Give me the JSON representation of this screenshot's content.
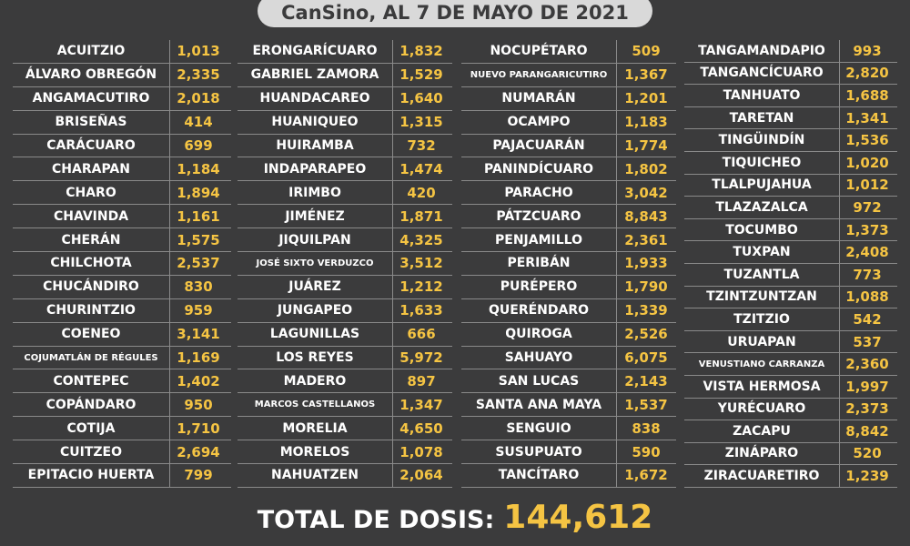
{
  "header": {
    "title": "CanSino, AL 7 DE MAYO DE 2021"
  },
  "columns": [
    [
      {
        "name": "ACUITZIO",
        "value": "1,013"
      },
      {
        "name": "ÁLVARO OBREGÓN",
        "value": "2,335"
      },
      {
        "name": "ANGAMACUTIRO",
        "value": "2,018"
      },
      {
        "name": "BRISEÑAS",
        "value": "414"
      },
      {
        "name": "CARÁCUARO",
        "value": "699"
      },
      {
        "name": "CHARAPAN",
        "value": "1,184"
      },
      {
        "name": "CHARO",
        "value": "1,894"
      },
      {
        "name": "CHAVINDA",
        "value": "1,161"
      },
      {
        "name": "CHERÁN",
        "value": "1,575"
      },
      {
        "name": "CHILCHOTA",
        "value": "2,537"
      },
      {
        "name": "CHUCÁNDIRO",
        "value": "830"
      },
      {
        "name": "CHURINTZIO",
        "value": "959"
      },
      {
        "name": "COENEO",
        "value": "3,141"
      },
      {
        "name": "COJUMATLÁN DE RÉGULES",
        "value": "1,169",
        "small": true
      },
      {
        "name": "CONTEPEC",
        "value": "1,402"
      },
      {
        "name": "COPÁNDARO",
        "value": "950"
      },
      {
        "name": "COTIJA",
        "value": "1,710"
      },
      {
        "name": "CUITZEO",
        "value": "2,694"
      },
      {
        "name": "EPITACIO HUERTA",
        "value": "799"
      }
    ],
    [
      {
        "name": "ERONGARÍCUARO",
        "value": "1,832"
      },
      {
        "name": "GABRIEL ZAMORA",
        "value": "1,529"
      },
      {
        "name": "HUANDACAREO",
        "value": "1,640"
      },
      {
        "name": "HUANIQUEO",
        "value": "1,315"
      },
      {
        "name": "HUIRAMBA",
        "value": "732"
      },
      {
        "name": "INDAPARAPEO",
        "value": "1,474"
      },
      {
        "name": "IRIMBO",
        "value": "420"
      },
      {
        "name": "JIMÉNEZ",
        "value": "1,871"
      },
      {
        "name": "JIQUILPAN",
        "value": "4,325"
      },
      {
        "name": "JOSÉ SIXTO VERDUZCO",
        "value": "3,512",
        "small": true
      },
      {
        "name": "JUÁREZ",
        "value": "1,212"
      },
      {
        "name": "JUNGAPEO",
        "value": "1,633"
      },
      {
        "name": "LAGUNILLAS",
        "value": "666"
      },
      {
        "name": "LOS REYES",
        "value": "5,972"
      },
      {
        "name": "MADERO",
        "value": "897"
      },
      {
        "name": "MARCOS CASTELLANOS",
        "value": "1,347",
        "small": true
      },
      {
        "name": "MORELIA",
        "value": "4,650"
      },
      {
        "name": "MORELOS",
        "value": "1,078"
      },
      {
        "name": "NAHUATZEN",
        "value": "2,064"
      }
    ],
    [
      {
        "name": "NOCUPÉTARO",
        "value": "509"
      },
      {
        "name": "NUEVO PARANGARICUTIRO",
        "value": "1,367",
        "small": true
      },
      {
        "name": "NUMARÁN",
        "value": "1,201"
      },
      {
        "name": "OCAMPO",
        "value": "1,183"
      },
      {
        "name": "PAJACUARÁN",
        "value": "1,774"
      },
      {
        "name": "PANINDÍCUARO",
        "value": "1,802"
      },
      {
        "name": "PARACHO",
        "value": "3,042"
      },
      {
        "name": "PÁTZCUARO",
        "value": "8,843"
      },
      {
        "name": "PENJAMILLO",
        "value": "2,361"
      },
      {
        "name": "PERIBÁN",
        "value": "1,933"
      },
      {
        "name": "PURÉPERO",
        "value": "1,790"
      },
      {
        "name": "QUERÉNDARO",
        "value": "1,339"
      },
      {
        "name": "QUIROGA",
        "value": "2,526"
      },
      {
        "name": "SAHUAYO",
        "value": "6,075"
      },
      {
        "name": "SAN LUCAS",
        "value": "2,143"
      },
      {
        "name": "SANTA ANA MAYA",
        "value": "1,537"
      },
      {
        "name": "SENGUIO",
        "value": "838"
      },
      {
        "name": "SUSUPUATO",
        "value": "590"
      },
      {
        "name": "TANCÍTARO",
        "value": "1,672"
      }
    ],
    [
      {
        "name": "TANGAMANDAPIO",
        "value": "993"
      },
      {
        "name": "TANGANCÍCUARO",
        "value": "2,820"
      },
      {
        "name": "TANHUATO",
        "value": "1,688"
      },
      {
        "name": "TARETAN",
        "value": "1,341"
      },
      {
        "name": "TINGÜINDÍN",
        "value": "1,536"
      },
      {
        "name": "TIQUICHEO",
        "value": "1,020"
      },
      {
        "name": "TLALPUJAHUA",
        "value": "1,012"
      },
      {
        "name": "TLAZAZALCA",
        "value": "972"
      },
      {
        "name": "TOCUMBO",
        "value": "1,373"
      },
      {
        "name": "TUXPAN",
        "value": "2,408"
      },
      {
        "name": "TUZANTLA",
        "value": "773"
      },
      {
        "name": "TZINTZUNTZAN",
        "value": "1,088"
      },
      {
        "name": "TZITZIO",
        "value": "542"
      },
      {
        "name": "URUAPAN",
        "value": "537"
      },
      {
        "name": "VENUSTIANO CARRANZA",
        "value": "2,360",
        "small": true
      },
      {
        "name": "VISTA HERMOSA",
        "value": "1,997"
      },
      {
        "name": "YURÉCUARO",
        "value": "2,373"
      },
      {
        "name": "ZACAPU",
        "value": "8,842"
      },
      {
        "name": "ZINÁPARO",
        "value": "520"
      },
      {
        "name": "ZIRACUARETIRO",
        "value": "1,239"
      }
    ]
  ],
  "total": {
    "label": "TOTAL DE DOSIS:",
    "value": "144,612"
  },
  "colors": {
    "background": "#3b3b3c",
    "accent": "#f5c443",
    "text": "#ffffff"
  }
}
